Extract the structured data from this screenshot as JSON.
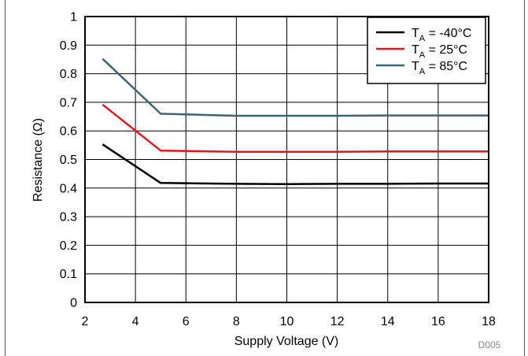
{
  "chart_data": {
    "type": "line",
    "title": "",
    "xlabel": "Supply Voltage (V)",
    "ylabel": "Resistance (Ω)",
    "xlim": [
      2,
      18
    ],
    "ylim": [
      0,
      1
    ],
    "xticks": [
      "2",
      "4",
      "6",
      "8",
      "10",
      "12",
      "14",
      "16",
      "18"
    ],
    "yticks": [
      "0",
      "0.1",
      "0.2",
      "0.3",
      "0.4",
      "0.5",
      "0.6",
      "0.7",
      "0.8",
      "0.9",
      "1"
    ],
    "grid": true,
    "legend_position": "top-right",
    "series": [
      {
        "name": "T_A = -40°C",
        "label_main": "T",
        "label_sub": "A",
        "label_rest": " = -40°C",
        "color": "#000000",
        "x": [
          2.7,
          5,
          8,
          10,
          12,
          14,
          16,
          18
        ],
        "y": [
          0.553,
          0.418,
          0.415,
          0.414,
          0.415,
          0.415,
          0.416,
          0.416
        ]
      },
      {
        "name": "T_A = 25°C",
        "label_main": "T",
        "label_sub": "A",
        "label_rest": " = 25°C",
        "color": "#e8141c",
        "x": [
          2.7,
          5,
          8,
          10,
          12,
          14,
          16,
          18
        ],
        "y": [
          0.692,
          0.531,
          0.527,
          0.527,
          0.527,
          0.528,
          0.528,
          0.528
        ]
      },
      {
        "name": "T_A = 85°C",
        "label_main": "T",
        "label_sub": "A",
        "label_rest": " = 85°C",
        "color": "#3c6478",
        "x": [
          2.7,
          5,
          8,
          10,
          12,
          14,
          16,
          18
        ],
        "y": [
          0.852,
          0.66,
          0.653,
          0.653,
          0.653,
          0.654,
          0.654,
          0.654
        ]
      }
    ],
    "figure_code": "D005"
  }
}
